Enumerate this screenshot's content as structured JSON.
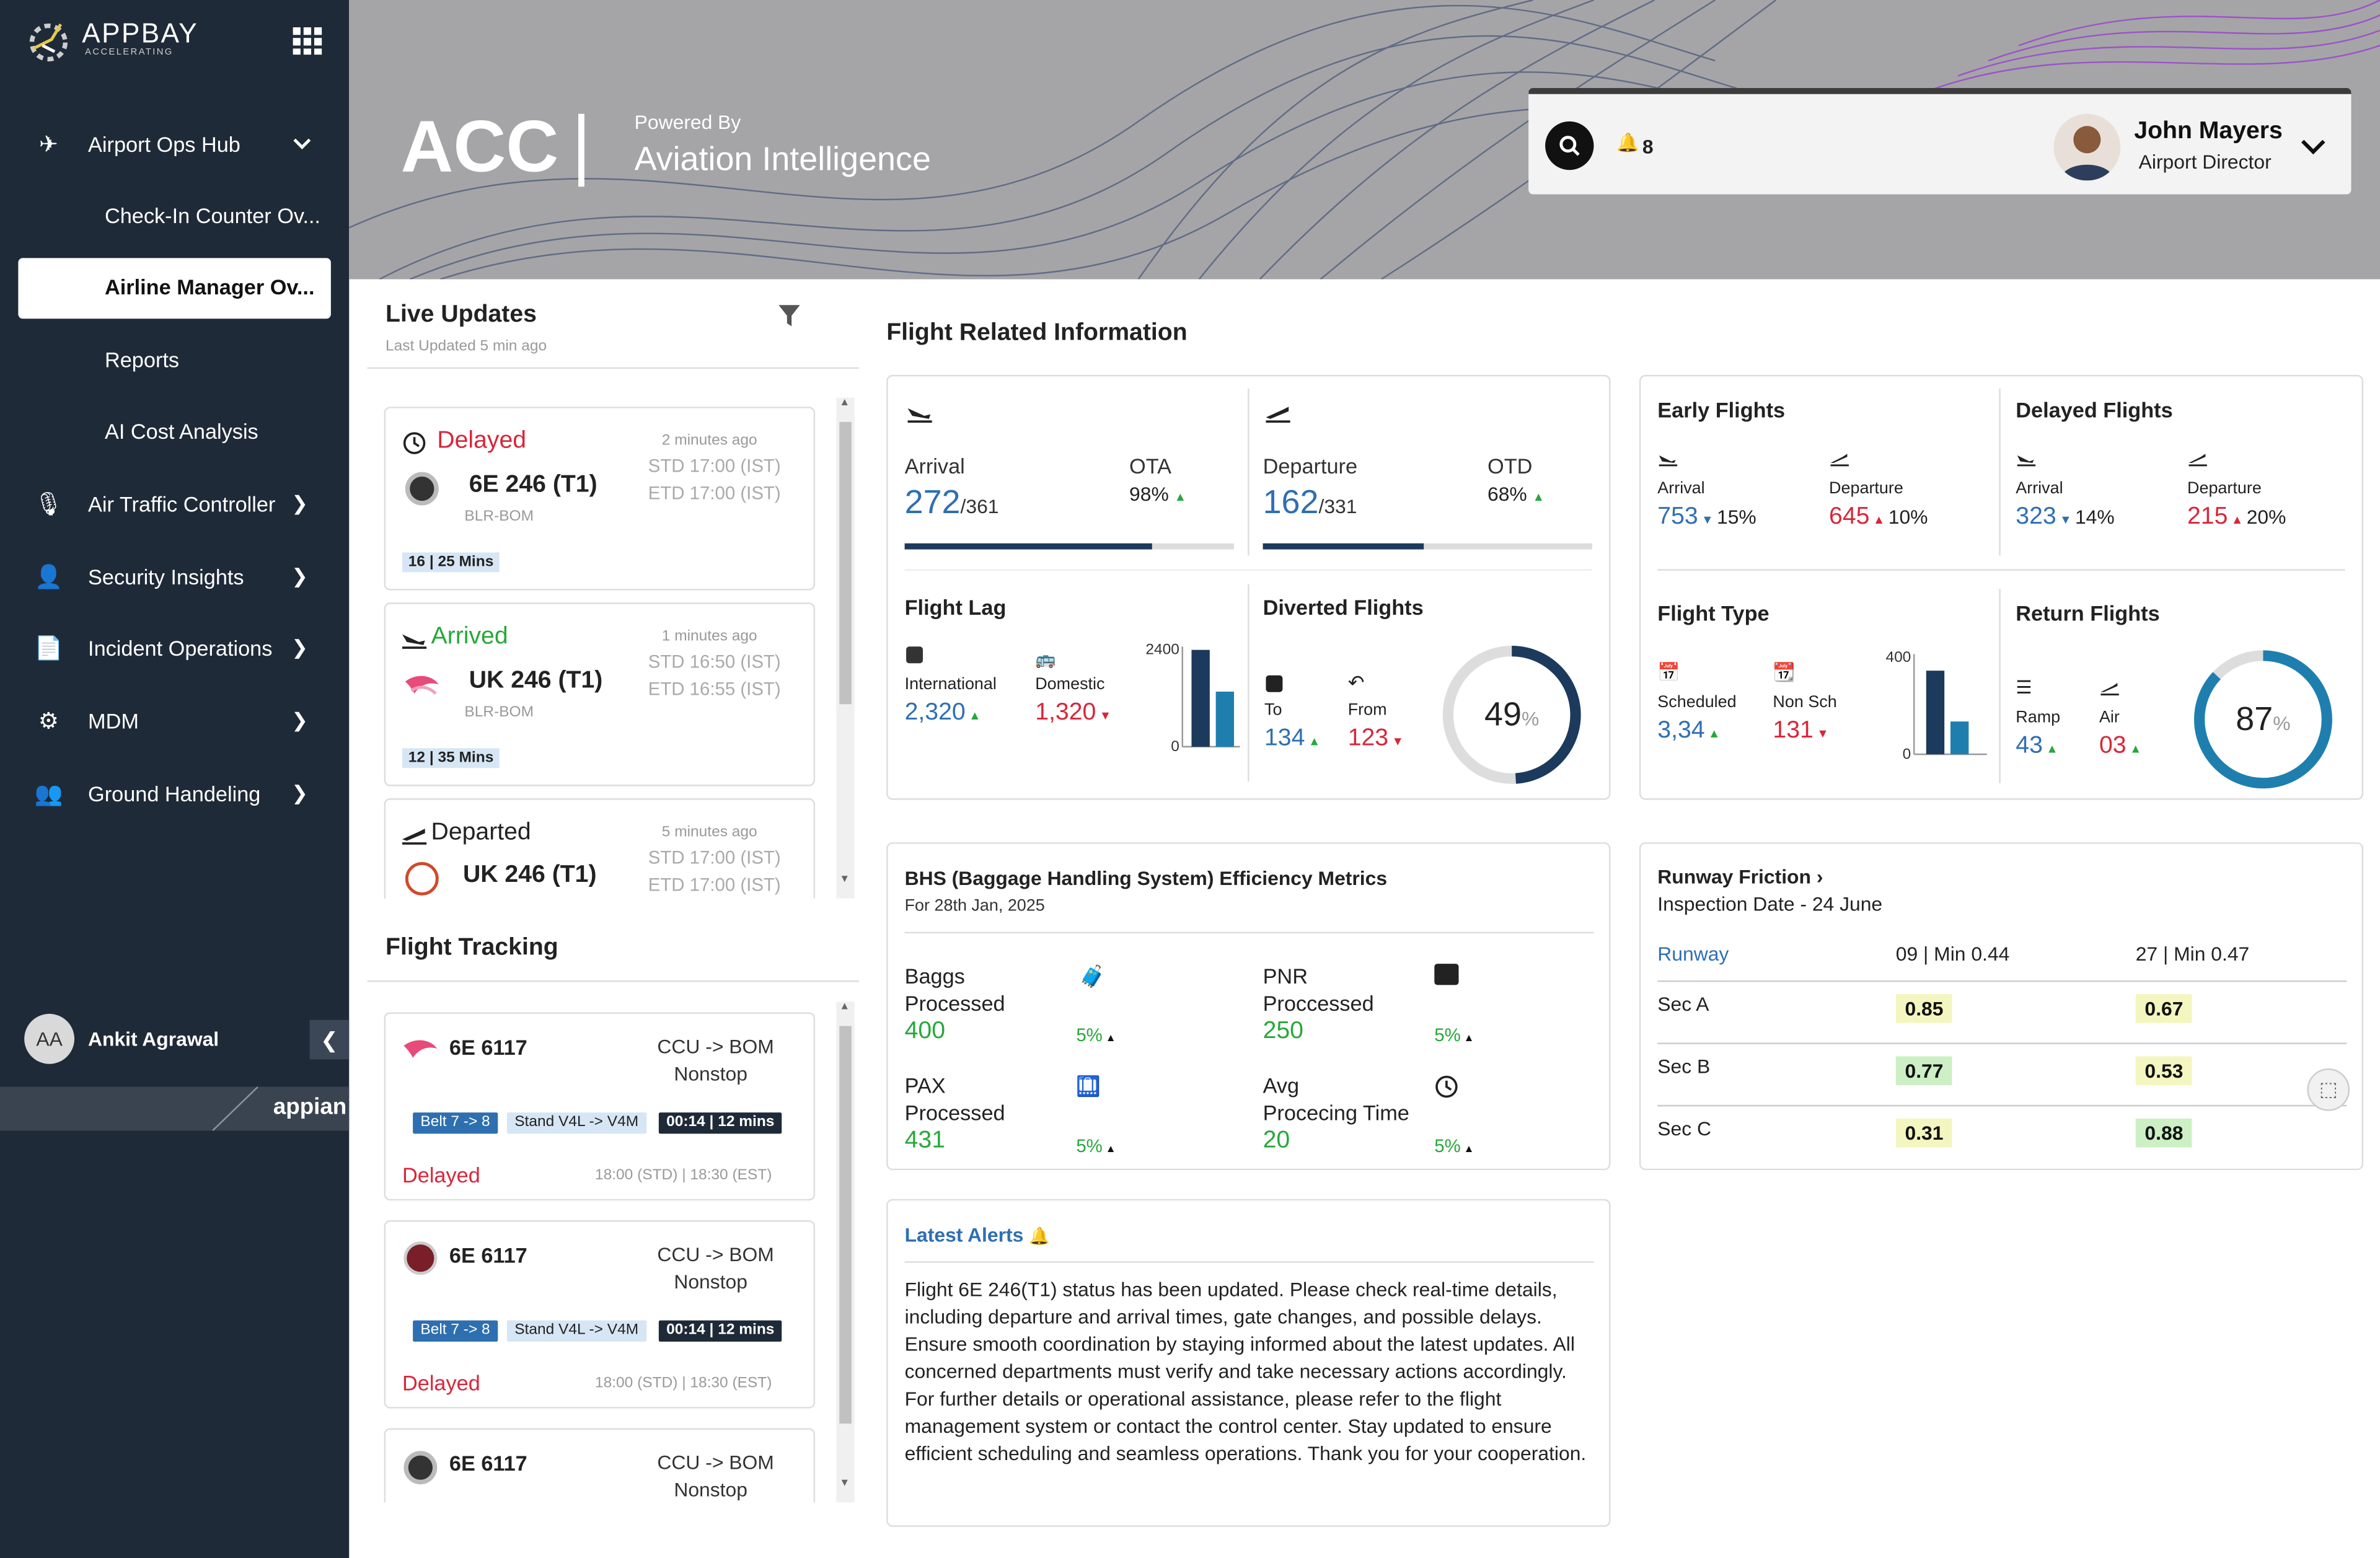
{
  "brand": {
    "name": "APPBAY",
    "tagline": "ACCELERATING"
  },
  "sidebar": {
    "hub": "Airport Ops Hub",
    "subs": [
      "Check-In Counter Ov...",
      "Airline Manager Ov...",
      "Reports",
      "AI Cost Analysis"
    ],
    "items": [
      "Air Traffic Controller",
      "Security Insights",
      "Incident Operations",
      "MDM",
      "Ground Handeling"
    ],
    "user": {
      "initials": "AA",
      "name": "Ankit Agrawal"
    },
    "footer": "appian"
  },
  "header": {
    "title": "ACC",
    "powered_by": "Powered By",
    "subtitle": "Aviation Intelligence",
    "notif_count": "8",
    "user_name": "John Mayers",
    "user_role": "Airport Director"
  },
  "live_updates": {
    "title": "Live Updates",
    "last_updated": "Last Updated 5 min ago",
    "cards": [
      {
        "status": "Delayed",
        "time_ago": "2 minutes ago",
        "flight": "6E 246 (T1)",
        "route": "BLR-BOM",
        "std": "STD 17:00 (IST)",
        "etd": "ETD 17:00 (IST)",
        "meta": "16 | 25 Mins",
        "color": "#d8263a"
      },
      {
        "status": "Arrived",
        "time_ago": "1 minutes ago",
        "flight": "UK 246 (T1)",
        "route": "BLR-BOM",
        "std": "STD 16:50 (IST)",
        "etd": "ETD 16:55 (IST)",
        "meta": "12 | 35 Mins",
        "color": "#27a83a"
      },
      {
        "status": "Departed",
        "time_ago": "5 minutes ago",
        "flight": "UK 246 (T1)",
        "route": "",
        "std": "STD 17:00 (IST)",
        "etd": "ETD 17:00 (IST)",
        "meta": "",
        "color": "#222222"
      }
    ]
  },
  "flight_tracking": {
    "title": "Flight Tracking",
    "cards": [
      {
        "flight": "6E 6117",
        "route": "CCU -> BOM",
        "type": "Nonstop",
        "belt": "Belt 7 -> 8",
        "stand": "Stand V4L -> V4M",
        "time": "00:14 | 12 mins",
        "status": "Delayed",
        "times": "18:00 (STD) | 18:30 (EST)"
      },
      {
        "flight": "6E 6117",
        "route": "CCU -> BOM",
        "type": "Nonstop",
        "belt": "Belt 7 -> 8",
        "stand": "Stand V4L -> V4M",
        "time": "00:14 | 12 mins",
        "status": "Delayed",
        "times": "18:00 (STD) | 18:30 (EST)"
      },
      {
        "flight": "6E 6117",
        "route": "CCU -> BOM",
        "type": "Nonstop"
      }
    ]
  },
  "fri": {
    "title": "Flight Related Information",
    "arrival": {
      "label": "Arrival",
      "value": "272",
      "total": "/361",
      "kpi_label": "OTA",
      "kpi": "98%",
      "progress": 0.75
    },
    "departure": {
      "label": "Departure",
      "value": "162",
      "total": "/331",
      "kpi_label": "OTD",
      "kpi": "68%",
      "progress": 0.49
    },
    "lag": {
      "title": "Flight Lag",
      "intl_label": "International",
      "intl": "2,320",
      "dom_label": "Domestic",
      "dom": "1,320",
      "ymax": "2400",
      "ymin": "0",
      "bars": [
        2320,
        1320
      ]
    },
    "diverted": {
      "title": "Diverted Flights",
      "to_label": "To",
      "to": "134",
      "from_label": "From",
      "from": "123",
      "percent": "49",
      "pct": 49
    }
  },
  "early": {
    "title": "Early Flights",
    "arr_label": "Arrival",
    "arr": "753",
    "arr_pct": "15%",
    "dep_label": "Departure",
    "dep": "645",
    "dep_pct": "10%"
  },
  "delayed": {
    "title": "Delayed Flights",
    "arr_label": "Arrival",
    "arr": "323",
    "arr_pct": "14%",
    "dep_label": "Departure",
    "dep": "215",
    "dep_pct": "20%"
  },
  "flight_type": {
    "title": "Flight Type",
    "sch_label": "Scheduled",
    "sch": "3,34",
    "non_label": "Non Sch",
    "non": "131",
    "ymax": "400",
    "ymin": "0",
    "bars": [
      334,
      131
    ]
  },
  "return": {
    "title": "Return Flights",
    "ramp_label": "Ramp",
    "ramp": "43",
    "air_label": "Air",
    "air": "03",
    "percent": "87",
    "pct": 87
  },
  "bhs": {
    "title": "BHS (Baggage Handling System) Efficiency Metrics",
    "date": "For 28th Jan, 2025",
    "baggs_l1": "Baggs",
    "baggs_l2": "Processed",
    "baggs": "400",
    "baggs_pct": "5%",
    "pnr_l1": "PNR",
    "pnr_l2": "Proccessed",
    "pnr": "250",
    "pnr_pct": "5%",
    "pax_l1": "PAX",
    "pax_l2": "Processed",
    "pax": "431",
    "pax_pct": "5%",
    "avg_l1": "Avg",
    "avg_l2": "Procecing Time",
    "avg": "20",
    "avg_pct": "5%"
  },
  "runway": {
    "title": "Runway Friction",
    "date": "Inspection Date - 24 June",
    "col0": "Runway",
    "col1": "09 | Min 0.44",
    "col2": "27 | Min 0.47",
    "rows": [
      {
        "sec": "Sec A",
        "a": "0.85",
        "b": "0.67"
      },
      {
        "sec": "Sec B",
        "a": "0.77",
        "b": "0.53"
      },
      {
        "sec": "Sec C",
        "a": "0.31",
        "b": "0.88"
      }
    ]
  },
  "alerts": {
    "title": "Latest Alerts",
    "body": "Flight 6E 246(T1) status has been updated. Please check real-time details, including departure and arrival times, gate changes, and possible delays. Ensure smooth coordination by staying informed about the latest updates. All concerned departments must verify and take necessary actions accordingly. For further details or operational assistance, please refer to the flight management system or contact the control center. Stay updated to ensure efficient scheduling and seamless operations. Thank you for your cooperation."
  }
}
